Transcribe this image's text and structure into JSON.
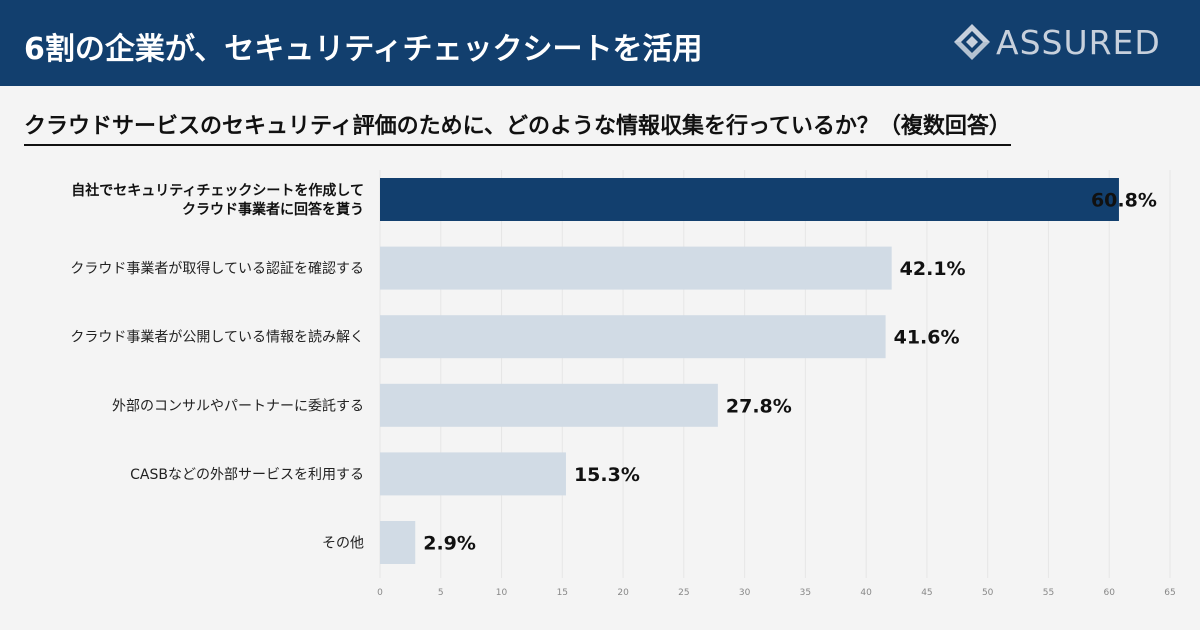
{
  "header": {
    "title": "6割の企業が、セキュリティチェックシートを活用",
    "logo_text": "ASSURED"
  },
  "question": "クラウドサービスのセキュリティ評価のために、どのような情報収集を行っているか？（複数回答）",
  "colors": {
    "header_bg": "#123f6e",
    "highlight_bar": "#123f6e",
    "bar": "#d1dbe5",
    "background": "#f4f4f4"
  },
  "chart_data": {
    "type": "bar",
    "orientation": "horizontal",
    "categories": [
      [
        "自社でセキュリティチェックシートを作成して",
        "クラウド事業者に回答を貰う"
      ],
      [
        "クラウド事業者が取得している認証を確認する"
      ],
      [
        "クラウド事業者が公開している情報を読み解く"
      ],
      [
        "外部のコンサルやパートナーに委託する"
      ],
      [
        "CASBなどの外部サービスを利用する"
      ],
      [
        "その他"
      ]
    ],
    "values": [
      60.8,
      42.1,
      41.6,
      27.8,
      15.3,
      2.9
    ],
    "value_labels": [
      "60.8%",
      "42.1%",
      "41.6%",
      "27.8%",
      "15.3%",
      "2.9%"
    ],
    "highlight_index": 0,
    "xlim": [
      0,
      65
    ],
    "xticks": [
      0,
      5,
      10,
      15,
      20,
      25,
      30,
      35,
      40,
      45,
      50,
      55,
      60,
      65
    ],
    "grid": true,
    "title": "",
    "xlabel": "",
    "ylabel": ""
  }
}
